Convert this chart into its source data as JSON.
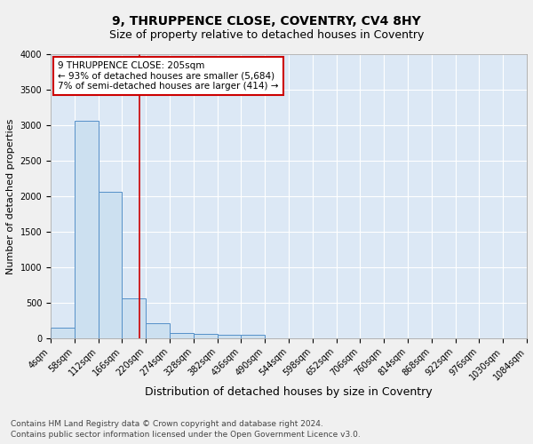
{
  "title": "9, THRUPPENCE CLOSE, COVENTRY, CV4 8HY",
  "subtitle": "Size of property relative to detached houses in Coventry",
  "xlabel": "Distribution of detached houses by size in Coventry",
  "ylabel": "Number of detached properties",
  "footnote1": "Contains HM Land Registry data © Crown copyright and database right 2024.",
  "footnote2": "Contains public sector information licensed under the Open Government Licence v3.0.",
  "bin_edges": [
    4,
    58,
    112,
    166,
    220,
    274,
    328,
    382,
    436,
    490,
    544,
    598,
    652,
    706,
    760,
    814,
    868,
    922,
    976,
    1030,
    1084
  ],
  "bin_heights": [
    150,
    3060,
    2060,
    560,
    210,
    75,
    55,
    45,
    45,
    0,
    0,
    0,
    0,
    0,
    0,
    0,
    0,
    0,
    0,
    0
  ],
  "bar_facecolor": "#cce0f0",
  "bar_edgecolor": "#5590c8",
  "bg_color": "#dce8f5",
  "grid_color": "#ffffff",
  "fig_color": "#f0f0f0",
  "property_line_x": 205,
  "property_line_color": "#cc0000",
  "annotation_line1": "9 THRUPPENCE CLOSE: 205sqm",
  "annotation_line2": "← 93% of detached houses are smaller (5,684)",
  "annotation_line3": "7% of semi-detached houses are larger (414) →",
  "annotation_box_color": "#cc0000",
  "annotation_text_color": "#000000",
  "ylim": [
    0,
    4000
  ],
  "yticks": [
    0,
    500,
    1000,
    1500,
    2000,
    2500,
    3000,
    3500,
    4000
  ],
  "title_fontsize": 10,
  "subtitle_fontsize": 9,
  "xlabel_fontsize": 9,
  "ylabel_fontsize": 8,
  "tick_fontsize": 7,
  "annotation_fontsize": 7.5,
  "footnote_fontsize": 6.5
}
